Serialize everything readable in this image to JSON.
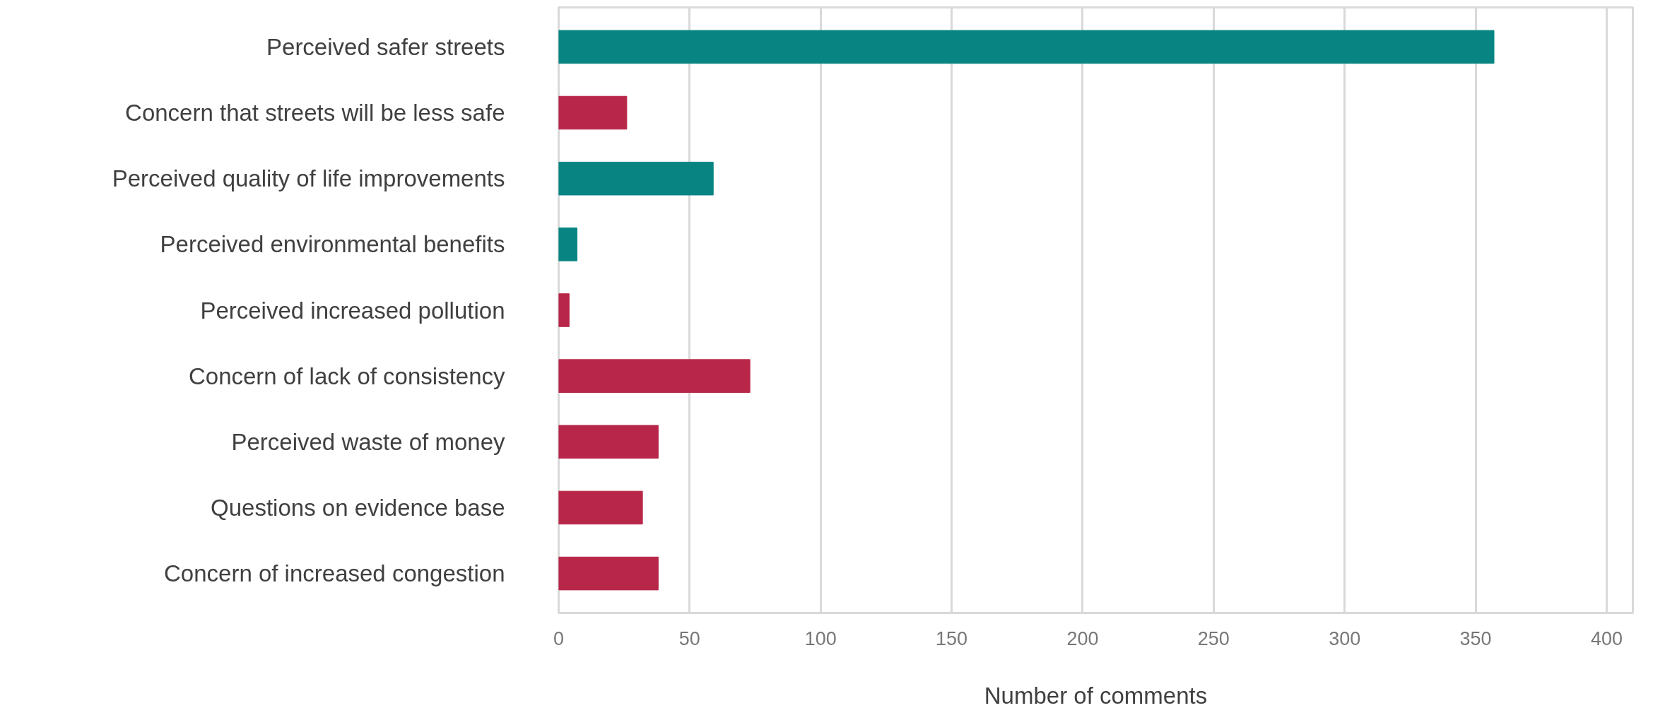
{
  "chart_data": {
    "type": "bar",
    "orientation": "horizontal",
    "xlabel": "Number of comments",
    "categories": [
      "Perceived safer streets",
      "Concern that streets will be less safe",
      "Perceived quality of life improvements",
      "Perceived environmental benefits",
      "Perceived increased pollution",
      "Concern of lack of consistency",
      "Perceived waste of money",
      "Questions on evidence base",
      "Concern of increased congestion"
    ],
    "values": [
      357,
      26,
      59,
      7,
      4,
      73,
      38,
      32,
      38
    ],
    "colors": [
      "#088582",
      "#b8274a",
      "#088582",
      "#088582",
      "#b8274a",
      "#b8274a",
      "#b8274a",
      "#b8274a",
      "#b8274a"
    ],
    "xlim": [
      0,
      410
    ],
    "xticks": [
      0,
      50,
      100,
      150,
      200,
      250,
      300,
      350,
      400
    ],
    "grid": "x"
  }
}
